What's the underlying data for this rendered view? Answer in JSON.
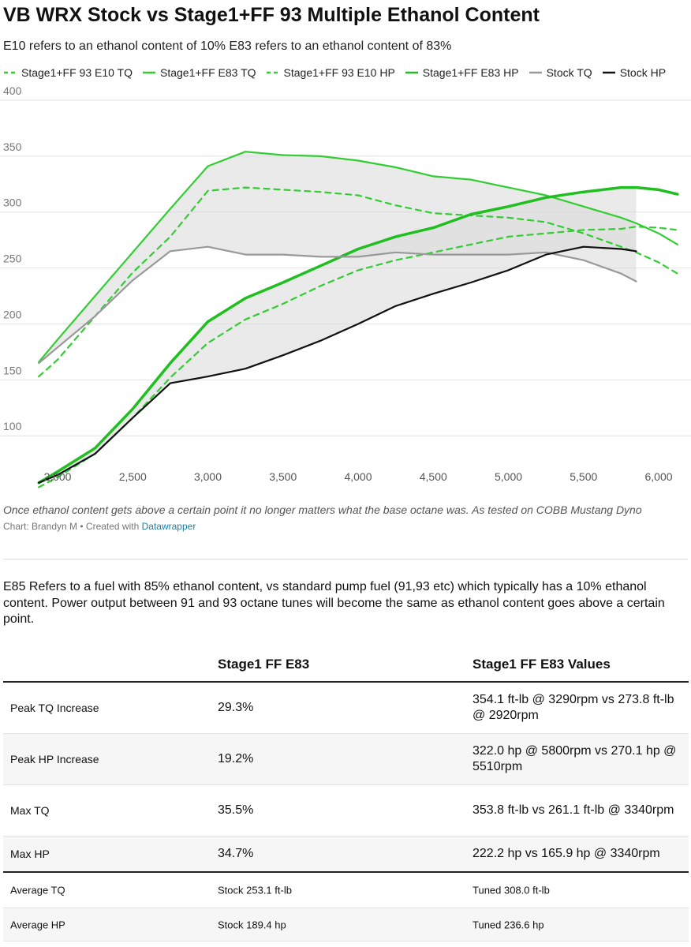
{
  "chart_data": {
    "type": "line",
    "title": "VB WRX Stock vs Stage1+FF 93 Multiple Ethanol Content",
    "subtitle": "E10 refers to an ethanol content of 10% E83 refers to an ethanol content of 83%",
    "x": [
      1875,
      2000,
      2250,
      2500,
      2750,
      3000,
      3250,
      3500,
      3750,
      4000,
      4250,
      4500,
      4750,
      5000,
      5250,
      5500,
      5750,
      5850,
      6000,
      6125
    ],
    "xlim": [
      1617,
      6215
    ],
    "xticks": [
      {
        "value": 2000,
        "label": "2,000"
      },
      {
        "value": 2500,
        "label": "2,500"
      },
      {
        "value": 3000,
        "label": "3,000"
      },
      {
        "value": 3500,
        "label": "3,500"
      },
      {
        "value": 4000,
        "label": "4,000"
      },
      {
        "value": 4500,
        "label": "4,500"
      },
      {
        "value": 5000,
        "label": "5,000"
      },
      {
        "value": 5500,
        "label": "5,500"
      },
      {
        "value": 6000,
        "label": "6,000"
      }
    ],
    "ylim": [
      55,
      400
    ],
    "yticks": [
      100,
      150,
      200,
      250,
      300,
      350,
      400
    ],
    "grid": true,
    "series": [
      {
        "name": "Stage1+FF 93 E10 TQ",
        "color": "#33cc33",
        "style": "dashed",
        "values": [
          153,
          168,
          207,
          246,
          278,
          319,
          322,
          320,
          318,
          315,
          306,
          299,
          297,
          295,
          291,
          281,
          269,
          264,
          255,
          245
        ]
      },
      {
        "name": "Stage1+FF E83 TQ",
        "color": "#33cc33",
        "style": "solid",
        "values": [
          166,
          186,
          225,
          264,
          303,
          341,
          354,
          351,
          350,
          346,
          340,
          332,
          329,
          322,
          315,
          305,
          295,
          290,
          281,
          271
        ]
      },
      {
        "name": "Stage1+FF 93 E10 HP",
        "color": "#33cc33",
        "style": "dashed",
        "values": [
          54,
          63,
          84,
          116,
          152,
          183,
          204,
          218,
          234,
          248,
          257,
          264,
          271,
          278,
          281,
          284,
          285,
          287,
          286,
          284
        ]
      },
      {
        "name": "Stage1+FF E83 HP",
        "color": "#1fbf1f",
        "style": "solid",
        "values": [
          58,
          68,
          89,
          124,
          165,
          202,
          223,
          237,
          252,
          267,
          278,
          286,
          298,
          305,
          313,
          318,
          322,
          322,
          320,
          316
        ]
      },
      {
        "name": "Stock TQ",
        "color": "#999999",
        "style": "solid",
        "values": [
          165,
          179,
          207,
          239,
          265,
          269,
          262,
          262,
          260,
          260,
          264,
          262,
          262,
          262,
          264,
          257,
          245,
          238,
          null,
          null
        ]
      },
      {
        "name": "Stock HP",
        "color": "#111111",
        "style": "solid",
        "values": [
          58,
          65,
          84,
          116,
          147,
          153,
          160,
          172,
          185,
          200,
          216,
          227,
          237,
          248,
          262,
          269,
          267,
          265,
          null,
          null
        ]
      }
    ]
  },
  "footer": {
    "caption": "Once ethanol content gets above a certain point it no longer matters what the base octane was. As tested on COBB Mustang Dyno",
    "credit": "Chart: Brandyn M • Created with",
    "link": "Datawrapper"
  },
  "description": "E85 Refers to a fuel with 85% ethanol content, vs standard pump fuel (91,93 etc) which typically has a 10% ethanol content. Power output between 91 and 93 octane tunes will become the same as ethanol content goes above a certain point.",
  "table": {
    "header": [
      "Stage1 FF E83",
      "Stage1 FF E83 Values"
    ],
    "rows": [
      [
        "Peak TQ Increase",
        "29.3%",
        "354.1 ft-lb @ 3290rpm vs 273.8 ft-lb @ 2920rpm"
      ],
      [
        "Peak HP Increase",
        "19.2%",
        "322.0 hp @ 5800rpm vs 270.1 hp @ 5510rpm"
      ],
      [
        "Max TQ",
        "35.5%",
        "353.8 ft-lb vs 261.1 ft-lb @ 3340rpm"
      ],
      [
        "Max HP",
        "34.7%",
        "222.2 hp vs 165.9 hp @ 3340rpm"
      ],
      [
        "Average TQ",
        "Stock 253.1 ft-lb",
        "Tuned 308.0 ft-lb"
      ],
      [
        "Average HP",
        "Stock 189.4 hp",
        "Tuned 236.6 hp"
      ]
    ]
  }
}
